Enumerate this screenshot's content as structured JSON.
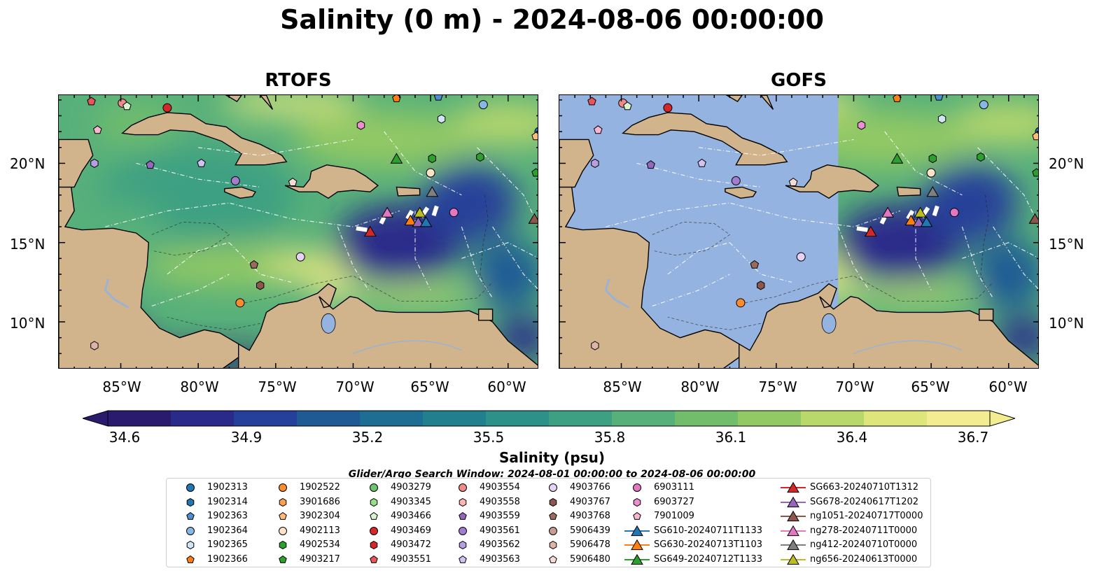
{
  "title": "Salinity (0 m) - 2024-08-06 00:00:00",
  "panels": [
    {
      "title": "RTOFS"
    },
    {
      "title": "GOFS"
    }
  ],
  "axes": {
    "y_ticks": [
      "20°N",
      "15°N",
      "10°N"
    ],
    "x_ticks": [
      "85°W",
      "80°W",
      "75°W",
      "70°W",
      "65°W",
      "60°W"
    ],
    "lon_range": [
      -89,
      -58
    ],
    "lat_range": [
      7,
      24.3
    ]
  },
  "colorbar": {
    "label": "Salinity (psu)",
    "ticks": [
      "34.6",
      "34.9",
      "35.2",
      "35.5",
      "35.8",
      "36.1",
      "36.4",
      "36.7"
    ],
    "min": 34.6,
    "max": 36.7,
    "colors_low_to_high": [
      "#2b1b6e",
      "#2a2a8a",
      "#25409a",
      "#1f5a95",
      "#1d6e92",
      "#227f8d",
      "#2d918a",
      "#3ea082",
      "#57b07a",
      "#72bd6c",
      "#93c964",
      "#b9d86c",
      "#dee57b",
      "#f3ec90"
    ]
  },
  "search_window": "Glider/Argo Search Window: 2024-08-01 00:00:00 to 2024-08-06 00:00:00",
  "land_color": "#d2b48c",
  "legend": [
    {
      "label": "1902313",
      "marker": "circle",
      "color": "#1f77b4"
    },
    {
      "label": "1902314",
      "marker": "hexagon",
      "color": "#1f77b4"
    },
    {
      "label": "1902363",
      "marker": "pentagon",
      "color": "#4b8fd0"
    },
    {
      "label": "1902364",
      "marker": "circle",
      "color": "#86b8e6"
    },
    {
      "label": "1902365",
      "marker": "hexagon",
      "color": "#cfe6f7"
    },
    {
      "label": "1902366",
      "marker": "pentagon",
      "color": "#ff7f0e"
    },
    {
      "label": "1902522",
      "marker": "circle",
      "color": "#ff8c2a"
    },
    {
      "label": "3901686",
      "marker": "hexagon",
      "color": "#ffa050"
    },
    {
      "label": "3902304",
      "marker": "pentagon",
      "color": "#ffbb78"
    },
    {
      "label": "4902113",
      "marker": "circle",
      "color": "#ffe3c8"
    },
    {
      "label": "4902534",
      "marker": "hexagon",
      "color": "#2ca02c"
    },
    {
      "label": "4903217",
      "marker": "pentagon",
      "color": "#2ca02c"
    },
    {
      "label": "4903279",
      "marker": "circle",
      "color": "#6cc46c"
    },
    {
      "label": "4903345",
      "marker": "hexagon",
      "color": "#98df8a"
    },
    {
      "label": "4903466",
      "marker": "pentagon",
      "color": "#d6f5cf"
    },
    {
      "label": "4903469",
      "marker": "circle",
      "color": "#d62728"
    },
    {
      "label": "4903472",
      "marker": "hexagon",
      "color": "#d62728"
    },
    {
      "label": "4903551",
      "marker": "pentagon",
      "color": "#e8545a"
    },
    {
      "label": "4903554",
      "marker": "circle",
      "color": "#f08a8a"
    },
    {
      "label": "4903558",
      "marker": "hexagon",
      "color": "#ffb6b6"
    },
    {
      "label": "4903559",
      "marker": "pentagon",
      "color": "#9467bd"
    },
    {
      "label": "4903561",
      "marker": "circle",
      "color": "#a27dcf"
    },
    {
      "label": "4903562",
      "marker": "hexagon",
      "color": "#b69ee0"
    },
    {
      "label": "4903563",
      "marker": "pentagon",
      "color": "#d2c2f0"
    },
    {
      "label": "4903766",
      "marker": "circle",
      "color": "#e6d2f5"
    },
    {
      "label": "4903767",
      "marker": "hexagon",
      "color": "#8c564b"
    },
    {
      "label": "4903768",
      "marker": "pentagon",
      "color": "#9b6a5f"
    },
    {
      "label": "5906439",
      "marker": "circle",
      "color": "#c49c94"
    },
    {
      "label": "5906478",
      "marker": "hexagon",
      "color": "#dcb4a8"
    },
    {
      "label": "5906480",
      "marker": "pentagon",
      "color": "#f7dcd6"
    },
    {
      "label": "6903111",
      "marker": "circle",
      "color": "#e377c2"
    },
    {
      "label": "6903727",
      "marker": "hexagon",
      "color": "#ec8fd0"
    },
    {
      "label": "7901009",
      "marker": "pentagon",
      "color": "#f7b6d2"
    },
    {
      "label": "SG610-20240711T1133",
      "marker": "triangle-line",
      "color": "#1f77b4"
    },
    {
      "label": "SG630-20240713T1103",
      "marker": "triangle-line",
      "color": "#ff7f0e"
    },
    {
      "label": "SG649-20240712T1133",
      "marker": "triangle-line",
      "color": "#2ca02c"
    },
    {
      "label": "SG663-20240710T1312",
      "marker": "triangle-line",
      "color": "#d62728"
    },
    {
      "label": "SG678-20240617T1202",
      "marker": "triangle-line",
      "color": "#9467bd"
    },
    {
      "label": "ng1051-20240717T0000",
      "marker": "triangle-line",
      "color": "#8c564b"
    },
    {
      "label": "ng278-20240711T0000",
      "marker": "triangle-line",
      "color": "#e377c2"
    },
    {
      "label": "ng412-20240710T0000",
      "marker": "triangle-line",
      "color": "#7f7f7f"
    },
    {
      "label": "ng656-20240613T0000",
      "marker": "triangle-line",
      "color": "#bcbd22"
    }
  ],
  "map_markers": [
    {
      "id": "4903551",
      "lon": -86.9,
      "lat": 23.9
    },
    {
      "id": "4903554",
      "lon": -84.9,
      "lat": 23.8
    },
    {
      "id": "4903466",
      "lon": -84.6,
      "lat": 23.6
    },
    {
      "id": "4903469",
      "lon": -82.0,
      "lat": 23.5
    },
    {
      "id": "7901009",
      "lon": -86.5,
      "lat": 22.1
    },
    {
      "id": "1902366",
      "lon": -67.2,
      "lat": 24.1
    },
    {
      "id": "1902363",
      "lon": -64.5,
      "lat": 24.2
    },
    {
      "id": "1902364",
      "lon": -61.6,
      "lat": 23.7
    },
    {
      "id": "1902365",
      "lon": -64.3,
      "lat": 22.8
    },
    {
      "id": "6903727",
      "lon": -69.5,
      "lat": 22.4
    },
    {
      "id": "1902313",
      "lon": -58.0,
      "lat": 22.0
    },
    {
      "id": "3902304",
      "lon": -58.2,
      "lat": 21.7
    },
    {
      "id": "4902534",
      "lon": -64.9,
      "lat": 20.3
    },
    {
      "id": "4902534",
      "lon": -61.8,
      "lat": 20.4
    },
    {
      "id": "4903217",
      "lon": -58.2,
      "lat": 19.4
    },
    {
      "id": "4902113",
      "lon": -65.0,
      "lat": 19.4
    },
    {
      "id": "4903563",
      "lon": -79.8,
      "lat": 20.0
    },
    {
      "id": "4903559",
      "lon": -83.1,
      "lat": 19.9
    },
    {
      "id": "4903562",
      "lon": -86.7,
      "lat": 20.0
    },
    {
      "id": "4903561",
      "lon": -77.6,
      "lat": 18.9
    },
    {
      "id": "5906480",
      "lon": -73.9,
      "lat": 18.8
    },
    {
      "id": "6903111",
      "lon": -63.5,
      "lat": 16.9
    },
    {
      "id": "4903766",
      "lon": -73.4,
      "lat": 14.1
    },
    {
      "id": "4903768",
      "lon": -76.4,
      "lat": 13.6
    },
    {
      "id": "4903767",
      "lon": -76.0,
      "lat": 12.3
    },
    {
      "id": "1902522",
      "lon": -77.3,
      "lat": 11.2
    },
    {
      "id": "5906478",
      "lon": -86.7,
      "lat": 8.5
    }
  ],
  "glider_markers": [
    {
      "id": "SG649-20240712T1133",
      "lon": -67.2,
      "lat": 20.3
    },
    {
      "id": "ng412-20240710T0000",
      "lon": -64.9,
      "lat": 18.2
    },
    {
      "id": "ng278-20240711T0000",
      "lon": -67.8,
      "lat": 16.9
    },
    {
      "id": "ng656-20240613T0000",
      "lon": -65.7,
      "lat": 16.9
    },
    {
      "id": "SG630-20240713T1103",
      "lon": -66.3,
      "lat": 16.4
    },
    {
      "id": "SG678-20240617T1202",
      "lon": -65.8,
      "lat": 16.3
    },
    {
      "id": "SG610-20240711T1133",
      "lon": -65.3,
      "lat": 16.3
    },
    {
      "id": "SG663-20240710T1312",
      "lon": -68.9,
      "lat": 15.7
    },
    {
      "id": "ng1051-20240717T0000",
      "lon": -58.3,
      "lat": 16.5
    }
  ]
}
